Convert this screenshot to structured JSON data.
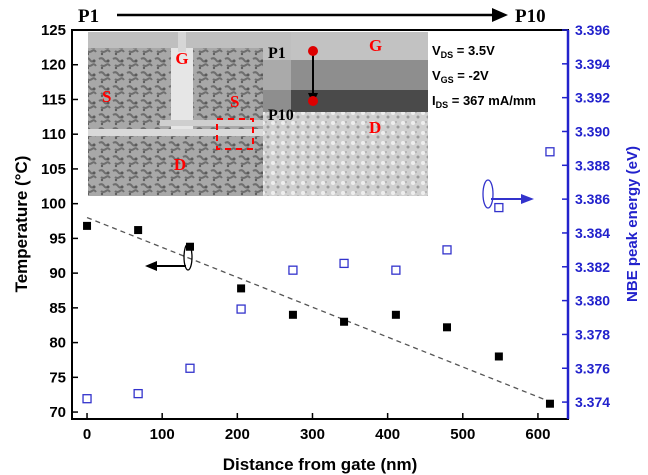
{
  "chart_data": {
    "type": "scatter",
    "title": "",
    "xlabel": "Distance from gate (nm)",
    "ylabel_left": "Temperature (°C)",
    "ylabel_right": "NBE peak energy (eV)",
    "xlim": [
      -20,
      640
    ],
    "ylim_left": [
      69,
      125
    ],
    "ylim_right": [
      3.373,
      3.396
    ],
    "x_ticks": [
      0,
      100,
      200,
      300,
      400,
      500,
      600
    ],
    "y_left_ticks": [
      70,
      75,
      80,
      85,
      90,
      95,
      100,
      105,
      110,
      115,
      120,
      125
    ],
    "y_right_ticks": [
      3.374,
      3.376,
      3.378,
      3.38,
      3.382,
      3.384,
      3.386,
      3.388,
      3.39,
      3.392,
      3.394,
      3.396
    ],
    "grid": false,
    "series": [
      {
        "axis": "left",
        "marker": "filled-square",
        "color": "#000000",
        "x": [
          0,
          68,
          137,
          205,
          274,
          342,
          411,
          479,
          548,
          616
        ],
        "y": [
          96.8,
          96.2,
          93.8,
          87.8,
          84.0,
          83.0,
          84.0,
          82.2,
          78.0,
          71.2
        ]
      },
      {
        "axis": "right",
        "marker": "open-square",
        "color": "#3333cc",
        "x": [
          0,
          68,
          137,
          205,
          274,
          342,
          411,
          479,
          548,
          616
        ],
        "y": [
          3.3742,
          3.3745,
          3.376,
          3.3795,
          3.3818,
          3.3822,
          3.3818,
          3.383,
          3.3855,
          3.3888
        ]
      }
    ],
    "trendline": {
      "style": "dashed",
      "color": "#555555",
      "x": [
        0,
        616
      ],
      "y": [
        98.0,
        71.5
      ]
    },
    "position_arrow": {
      "start": "P1",
      "end": "P10"
    },
    "inset": {
      "left_labels": [
        "G",
        "S",
        "S",
        "D"
      ],
      "right_labels": [
        "P1",
        "G",
        "P10",
        "D"
      ],
      "conditions": [
        {
          "symbol": "V",
          "sub": "DS",
          "value": " = 3.5V"
        },
        {
          "symbol": "V",
          "sub": "GS",
          "value": " = -2V"
        },
        {
          "symbol": "I",
          "sub": "DS",
          "value": " = 367 mA/mm"
        }
      ]
    },
    "colors": {
      "left_axis": "#000000",
      "right_axis": "#2222cc",
      "markers_right": "#3333cc",
      "label_red": "#ff0000"
    }
  }
}
